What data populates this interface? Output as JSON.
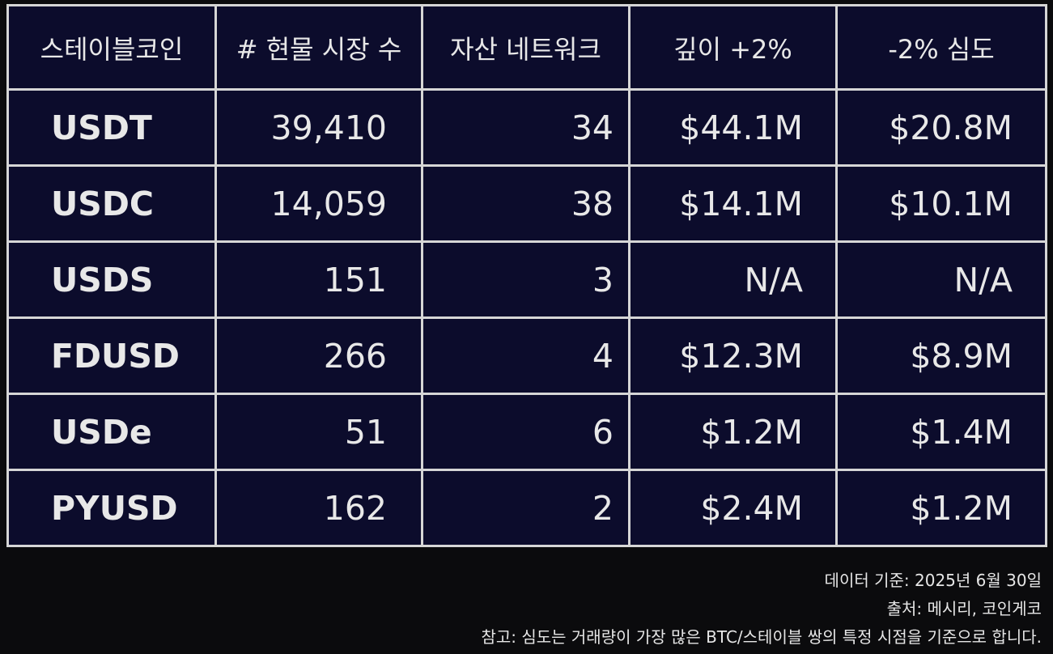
{
  "chart_data": {
    "type": "table",
    "columns": [
      "스테이블코인",
      "# 현물 시장 수",
      "자산 네트워크",
      "깊이 +2%",
      "-2% 심도"
    ],
    "rows": [
      [
        "USDT",
        "39,410",
        "34",
        "$44.1M",
        "$20.8M"
      ],
      [
        "USDC",
        "14,059",
        "38",
        "$14.1M",
        "$10.1M"
      ],
      [
        "USDS",
        "151",
        "3",
        "N/A",
        "N/A"
      ],
      [
        "FDUSD",
        "266",
        "4",
        "$12.3M",
        "$8.9M"
      ],
      [
        "USDe",
        "51",
        "6",
        "$1.2M",
        "$1.4M"
      ],
      [
        "PYUSD",
        "162",
        "2",
        "$2.4M",
        "$1.2M"
      ]
    ]
  },
  "notes": {
    "date": "데이터 기준: 2025년 6월 30일",
    "source": "출처: 메시리, 코인게코",
    "remark": "참고: 심도는 거래량이 가장 많은 BTC/스테이블 쌍의 특정 시점을 기준으로 합니다."
  },
  "colors": {
    "background": "#0b0b0d",
    "table_fill": "#0c0c2c",
    "grid_line": "#d6d6d6",
    "text": "#e8e8e8"
  }
}
